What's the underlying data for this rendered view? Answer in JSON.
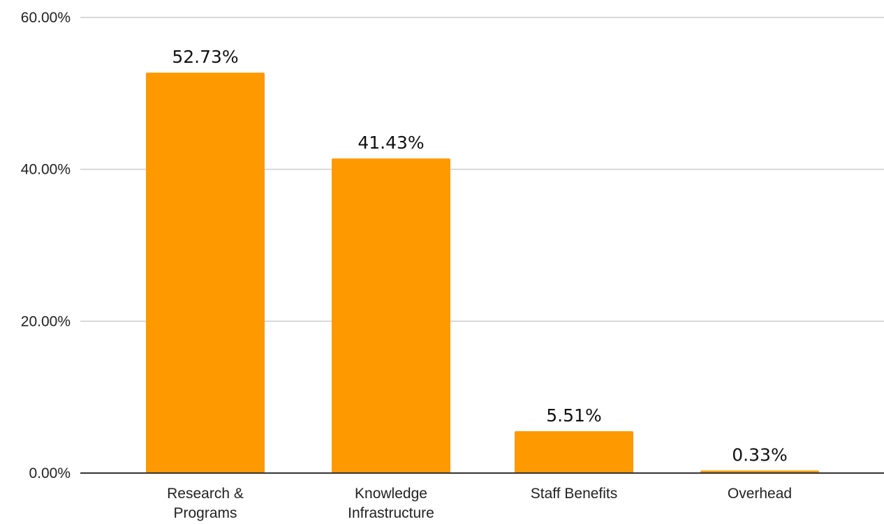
{
  "chart_data": {
    "type": "bar",
    "title": "",
    "xlabel": "",
    "ylabel": "",
    "categories": [
      [
        "Research &",
        "Programs"
      ],
      [
        "Knowledge",
        "Infrastructure"
      ],
      [
        "Staff Benefits"
      ],
      [
        "Overhead"
      ]
    ],
    "values": [
      52.73,
      41.43,
      5.51,
      0.33
    ],
    "data_labels": [
      "52.73%",
      "41.43%",
      "5.51%",
      "0.33%"
    ],
    "ylim": [
      0,
      60
    ],
    "yticks": [
      0,
      20,
      40,
      60
    ],
    "ytick_labels": [
      "0.00%",
      "20.00%",
      "40.00%",
      "60.00%"
    ],
    "grid": true,
    "legend": "none",
    "colors": {
      "bar": "#FF9900",
      "grid": "#cccccc",
      "axis": "#333333"
    }
  }
}
